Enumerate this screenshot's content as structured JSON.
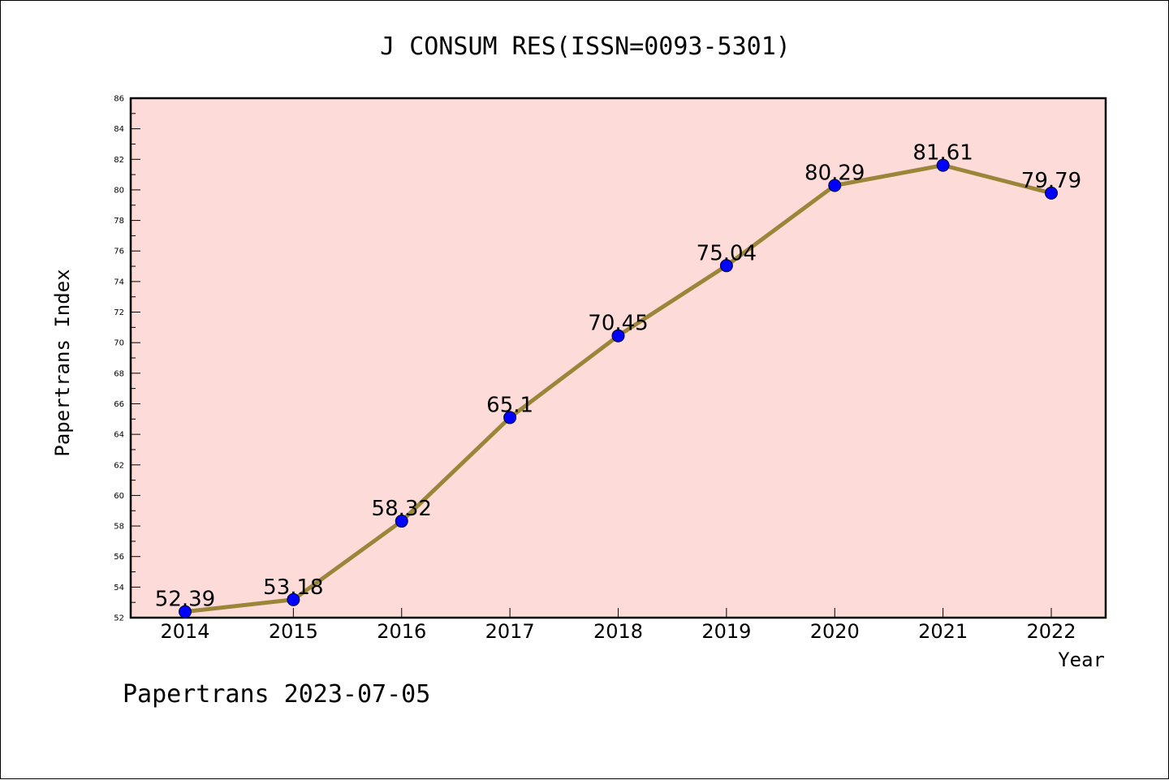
{
  "chart_data": {
    "type": "line",
    "title": "J CONSUM RES(ISSN=0093-5301)",
    "xlabel": "Year",
    "ylabel": "Papertrans Index",
    "categories": [
      "2014",
      "2015",
      "2016",
      "2017",
      "2018",
      "2019",
      "2020",
      "2021",
      "2022"
    ],
    "series": [
      {
        "values": [
          52.39,
          53.18,
          58.32,
          65.1,
          70.45,
          75.04,
          80.29,
          81.61,
          79.79
        ],
        "labels": [
          "52.39",
          "53.18",
          "58.32",
          "65.1",
          "70.45",
          "75.04",
          "80.29",
          "81.61",
          "79.79"
        ]
      }
    ],
    "ylim": [
      52,
      86
    ],
    "yticks": [
      "52",
      "54",
      "56",
      "58",
      "60",
      "62",
      "64",
      "66",
      "68",
      "70",
      "72",
      "74",
      "76",
      "78",
      "80",
      "82",
      "84",
      "86"
    ],
    "grid": false,
    "legend": "none",
    "footer": "Papertrans 2023-07-05",
    "colors": {
      "plot_background": "#fddbd9",
      "line": "#9a8539",
      "marker": "#0000ff"
    }
  }
}
